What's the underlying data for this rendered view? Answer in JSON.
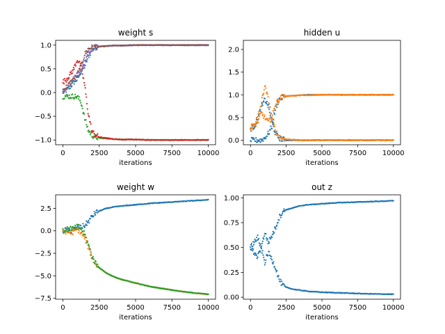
{
  "colors": {
    "c0": "#1f77b4",
    "c1": "#ff7f0e",
    "c2": "#2ca02c",
    "c3": "#d62728",
    "c4": "#9467bd",
    "c5": "#8c564b"
  },
  "chart_data": [
    {
      "id": "s",
      "type": "scatter",
      "title": "weight s",
      "xlabel": "iterations",
      "xlim": [
        -500,
        10500
      ],
      "ylim": [
        -1.1,
        1.1
      ],
      "xticks": [
        0,
        2500,
        5000,
        7500,
        10000
      ],
      "xtick_labels": [
        "0",
        "2500",
        "5000",
        "7500",
        "10000"
      ],
      "yticks": [
        -1.0,
        -0.5,
        0.0,
        0.5,
        1.0
      ],
      "ytick_labels": [
        "−1.0",
        "−0.5",
        "0.0",
        "0.5",
        "1.0"
      ],
      "x": [
        0,
        250,
        500,
        750,
        1000,
        1250,
        1500,
        1750,
        2000,
        2250,
        2500,
        3000,
        3500,
        4000,
        5000,
        6000,
        7000,
        8000,
        9000,
        10000
      ],
      "series": [
        {
          "color": "#1f77b4",
          "values": [
            0.0,
            0.05,
            0.12,
            0.22,
            0.28,
            0.45,
            0.55,
            0.75,
            0.9,
            0.95,
            0.97,
            0.98,
            0.99,
            0.99,
            1.0,
            1.0,
            1.0,
            1.0,
            1.0,
            1.0
          ]
        },
        {
          "color": "#9467bd",
          "values": [
            0.02,
            0.1,
            0.2,
            0.3,
            0.42,
            0.45,
            0.62,
            0.85,
            0.93,
            0.96,
            0.97,
            0.98,
            0.99,
            0.99,
            1.0,
            1.0,
            1.0,
            1.0,
            1.0,
            1.0
          ]
        },
        {
          "color": "#8c564b",
          "values": [
            0.05,
            0.12,
            0.2,
            0.28,
            0.38,
            0.55,
            0.8,
            0.92,
            0.95,
            0.96,
            0.97,
            0.98,
            0.99,
            0.99,
            1.0,
            1.0,
            1.0,
            1.0,
            1.0,
            1.0
          ]
        },
        {
          "color": "#2ca02c",
          "values": [
            -0.08,
            -0.08,
            -0.08,
            -0.08,
            -0.09,
            -0.2,
            -0.55,
            -0.8,
            -0.9,
            -0.94,
            -0.96,
            -0.97,
            -0.98,
            -0.99,
            -0.99,
            -1.0,
            -1.0,
            -1.0,
            -1.0,
            -1.0
          ]
        },
        {
          "color": "#d62728",
          "values": [
            0.22,
            0.28,
            0.38,
            0.5,
            0.7,
            0.55,
            0.15,
            -0.45,
            -0.82,
            -0.9,
            -0.94,
            -0.96,
            -0.98,
            -0.99,
            -0.99,
            -1.0,
            -1.0,
            -1.0,
            -1.0,
            -1.0
          ]
        }
      ]
    },
    {
      "id": "u",
      "type": "scatter",
      "title": "hidden u",
      "xlabel": "iterations",
      "xlim": [
        -500,
        10500
      ],
      "ylim": [
        -0.1,
        2.2
      ],
      "xticks": [
        0,
        2500,
        5000,
        7500,
        10000
      ],
      "xtick_labels": [
        "0",
        "2500",
        "5000",
        "7500",
        "10000"
      ],
      "yticks": [
        0.0,
        0.5,
        1.0,
        1.5,
        2.0
      ],
      "ytick_labels": [
        "0.0",
        "0.5",
        "1.0",
        "1.5",
        "2.0"
      ],
      "x": [
        0,
        250,
        500,
        750,
        1000,
        1250,
        1500,
        1750,
        2000,
        2250,
        2500,
        3000,
        3500,
        4000,
        5000,
        6000,
        7000,
        8000,
        9000,
        10000
      ],
      "series": [
        {
          "color": "#1f77b4",
          "values": [
            0.0,
            0.0,
            0.0,
            0.0,
            0.05,
            0.15,
            0.3,
            0.7,
            0.9,
            0.95,
            0.97,
            0.98,
            0.99,
            1.0,
            1.0,
            1.0,
            1.0,
            1.0,
            1.0,
            1.0
          ]
        },
        {
          "color": "#1f77b4",
          "values": [
            0.25,
            0.3,
            0.45,
            0.7,
            0.9,
            0.75,
            0.4,
            0.15,
            0.05,
            0.02,
            0.0,
            0.0,
            0.0,
            0.0,
            0.0,
            0.0,
            0.0,
            0.0,
            0.0,
            0.0
          ]
        },
        {
          "color": "#ff7f0e",
          "values": [
            0.3,
            0.35,
            0.5,
            0.8,
            1.2,
            0.9,
            0.5,
            0.2,
            0.08,
            0.04,
            0.02,
            0.01,
            0.0,
            0.0,
            0.0,
            0.0,
            0.0,
            0.0,
            0.0,
            0.0
          ]
        },
        {
          "color": "#ff7f0e",
          "values": [
            0.25,
            0.3,
            0.4,
            0.6,
            0.5,
            0.4,
            0.5,
            0.8,
            0.9,
            0.95,
            0.97,
            0.98,
            0.99,
            0.99,
            1.0,
            1.0,
            1.0,
            1.0,
            1.0,
            1.0
          ]
        }
      ]
    },
    {
      "id": "w",
      "type": "scatter",
      "title": "weight w",
      "xlabel": "iterations",
      "xlim": [
        -500,
        10500
      ],
      "ylim": [
        -7.6,
        4.0
      ],
      "xticks": [
        0,
        2500,
        5000,
        7500,
        10000
      ],
      "xtick_labels": [
        "0",
        "2500",
        "5000",
        "7500",
        "10000"
      ],
      "yticks": [
        -7.5,
        -5.0,
        -2.5,
        0.0,
        2.5
      ],
      "ytick_labels": [
        "−7.5",
        "−5.0",
        "−2.5",
        "0.0",
        "2.5"
      ],
      "x": [
        0,
        250,
        500,
        750,
        1000,
        1250,
        1500,
        1750,
        2000,
        2250,
        2500,
        3000,
        3500,
        4000,
        5000,
        6000,
        7000,
        8000,
        9000,
        10000
      ],
      "series": [
        {
          "color": "#1f77b4",
          "values": [
            0.0,
            0.1,
            0.0,
            0.2,
            0.3,
            0.4,
            0.6,
            1.0,
            1.6,
            2.0,
            2.2,
            2.5,
            2.65,
            2.75,
            2.9,
            3.05,
            3.15,
            3.25,
            3.35,
            3.45
          ]
        },
        {
          "color": "#ff7f0e",
          "values": [
            0.0,
            -0.1,
            -0.2,
            -0.1,
            0.2,
            -0.2,
            -0.8,
            -1.8,
            -3.0,
            -3.7,
            -4.1,
            -4.7,
            -5.1,
            -5.4,
            -5.8,
            -6.2,
            -6.45,
            -6.7,
            -6.9,
            -7.05
          ]
        },
        {
          "color": "#2ca02c",
          "values": [
            0.0,
            0.1,
            0.3,
            0.2,
            0.5,
            0.3,
            -0.4,
            -1.5,
            -2.8,
            -3.6,
            -4.1,
            -4.7,
            -5.1,
            -5.4,
            -5.8,
            -6.2,
            -6.45,
            -6.7,
            -6.9,
            -7.05
          ]
        }
      ]
    },
    {
      "id": "z",
      "type": "scatter",
      "title": "out z",
      "xlabel": "iterations",
      "xlim": [
        -500,
        10500
      ],
      "ylim": [
        -0.02,
        1.03
      ],
      "xticks": [
        0,
        2500,
        5000,
        7500,
        10000
      ],
      "xtick_labels": [
        "0",
        "2500",
        "5000",
        "7500",
        "10000"
      ],
      "yticks": [
        0.0,
        0.25,
        0.5,
        0.75,
        1.0
      ],
      "ytick_labels": [
        "0.00",
        "0.25",
        "0.50",
        "0.75",
        "1.00"
      ],
      "x": [
        0,
        250,
        500,
        750,
        1000,
        1250,
        1500,
        1750,
        2000,
        2250,
        2500,
        3000,
        3500,
        4000,
        5000,
        6000,
        7000,
        8000,
        9000,
        10000
      ],
      "series": [
        {
          "color": "#1f77b4",
          "values": [
            0.5,
            0.55,
            0.6,
            0.5,
            0.65,
            0.55,
            0.62,
            0.7,
            0.8,
            0.86,
            0.88,
            0.9,
            0.92,
            0.93,
            0.94,
            0.95,
            0.955,
            0.96,
            0.965,
            0.97
          ]
        },
        {
          "color": "#1f77b4",
          "values": [
            0.5,
            0.45,
            0.4,
            0.5,
            0.35,
            0.45,
            0.38,
            0.3,
            0.18,
            0.12,
            0.1,
            0.08,
            0.07,
            0.06,
            0.05,
            0.045,
            0.04,
            0.035,
            0.032,
            0.03
          ]
        }
      ]
    }
  ]
}
